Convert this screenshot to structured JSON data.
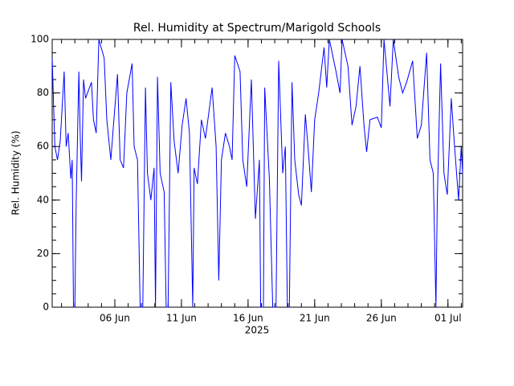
{
  "chart_data": {
    "type": "line",
    "title": "Rel. Humidity at Spectrum/Marigold Schools",
    "y_label": "Rel. Humidity (%)",
    "x_label": "2025",
    "xlim": [
      1.3,
      32.1
    ],
    "ylim": [
      0,
      100
    ],
    "yticks": [
      0,
      20,
      40,
      60,
      80,
      100
    ],
    "xticks": [
      {
        "value": 6,
        "label": "06 Jun"
      },
      {
        "value": 11,
        "label": "11 Jun"
      },
      {
        "value": 16,
        "label": "16 Jun"
      },
      {
        "value": 21,
        "label": "21 Jun"
      },
      {
        "value": 26,
        "label": "26 Jun"
      },
      {
        "value": 31,
        "label": "01 Jul"
      }
    ],
    "series": [
      {
        "name": "Rel. Humidity",
        "color": "#0000ff",
        "x": [
          1.3,
          1.5,
          1.7,
          1.9,
          2.2,
          2.35,
          2.5,
          2.7,
          2.8,
          2.9,
          3.0,
          3.1,
          3.3,
          3.4,
          3.5,
          3.65,
          3.8,
          4.25,
          4.4,
          4.6,
          4.8,
          5.2,
          5.4,
          5.7,
          5.9,
          6.2,
          6.4,
          6.65,
          6.9,
          7.3,
          7.45,
          7.7,
          7.9,
          8.1,
          8.3,
          8.45,
          8.7,
          8.95,
          9.05,
          9.2,
          9.4,
          9.7,
          9.85,
          10.0,
          10.2,
          10.45,
          10.75,
          11.05,
          11.35,
          11.6,
          11.85,
          11.95,
          12.2,
          12.5,
          12.8,
          13.3,
          13.6,
          13.8,
          14.0,
          14.3,
          14.6,
          14.8,
          15.0,
          15.4,
          15.6,
          15.9,
          16.25,
          16.55,
          16.85,
          16.95,
          17.15,
          17.25,
          17.6,
          17.85,
          18.1,
          18.3,
          18.6,
          18.8,
          18.95,
          19.1,
          19.3,
          19.5,
          19.8,
          20.0,
          20.3,
          20.5,
          20.75,
          21.0,
          21.3,
          21.7,
          21.9,
          22.1,
          22.6,
          22.9,
          23.05,
          23.5,
          23.8,
          24.1,
          24.4,
          24.7,
          24.9,
          25.15,
          25.7,
          26.0,
          26.2,
          26.65,
          26.9,
          27.3,
          27.6,
          27.9,
          28.35,
          28.7,
          29.0,
          29.4,
          29.65,
          29.9,
          30.1,
          30.2,
          30.45,
          30.7,
          30.95,
          31.25,
          31.5,
          31.8,
          32.0,
          32.1
        ],
        "values": [
          93,
          60,
          55,
          62,
          88,
          60,
          65,
          48,
          55,
          0,
          0,
          40,
          88,
          65,
          47,
          85,
          78,
          84,
          70,
          65,
          100,
          93,
          70,
          55,
          68,
          87,
          55,
          52,
          80,
          91,
          60,
          55,
          0,
          0,
          82,
          50,
          40,
          52,
          0,
          86,
          50,
          43,
          0,
          0,
          84,
          62,
          50,
          68,
          78,
          65,
          0,
          52,
          46,
          70,
          63,
          82,
          60,
          10,
          55,
          65,
          60,
          55,
          94,
          88,
          55,
          45,
          85,
          33,
          55,
          0,
          0,
          82,
          48,
          0,
          0,
          92,
          50,
          60,
          0,
          0,
          84,
          55,
          42,
          38,
          72,
          60,
          43,
          70,
          80,
          97,
          82,
          100,
          88,
          80,
          100,
          90,
          68,
          75,
          90,
          68,
          58,
          70,
          71,
          67,
          100,
          75,
          100,
          86,
          80,
          84,
          92,
          63,
          68,
          95,
          55,
          50,
          0,
          40,
          91,
          50,
          42,
          78,
          60,
          40,
          60,
          50
        ]
      }
    ]
  }
}
